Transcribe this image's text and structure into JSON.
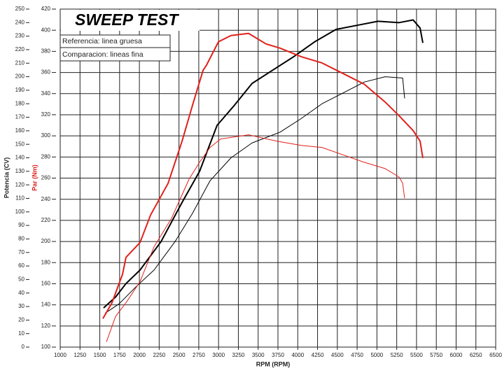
{
  "chart_data": {
    "type": "line",
    "title": "SWEEP TEST",
    "annotations": [
      "Referencia: linea gruesa",
      "Comparacion: lineas fina"
    ],
    "x_label": "RPM (RPM)",
    "y_label": "Potencia (CV)",
    "y2_label": "Par (Nm)",
    "xlim": [
      1000,
      6500
    ],
    "xticks": [
      1000,
      1250,
      1500,
      1750,
      2000,
      2250,
      2500,
      2750,
      3000,
      3250,
      3500,
      3750,
      4000,
      4250,
      4500,
      4750,
      5000,
      5250,
      5500,
      5750,
      6000,
      6250,
      6500
    ],
    "ylim": [
      0,
      250
    ],
    "yticks": [
      0,
      10,
      20,
      30,
      40,
      50,
      60,
      70,
      80,
      90,
      100,
      110,
      120,
      130,
      140,
      150,
      160,
      170,
      180,
      190,
      200,
      210,
      220,
      230,
      240,
      250
    ],
    "y2lim": [
      100,
      420
    ],
    "y2ticks": [
      100,
      120,
      140,
      160,
      180,
      200,
      220,
      240,
      260,
      280,
      300,
      320,
      340,
      360,
      380,
      400,
      420
    ],
    "grid": true,
    "series": [
      {
        "color": "#000000",
        "width": 2,
        "x": [
          1548,
          1699,
          1831,
          2008,
          2273,
          2539,
          2760,
          2981,
          3202,
          3423,
          3688,
          3954,
          4219,
          4484,
          4749,
          5014,
          5280,
          5457,
          5545,
          5580
        ],
        "values": [
          29,
          37,
          47,
          57,
          78,
          107,
          130,
          164,
          179,
          195,
          205,
          215,
          226,
          235,
          238,
          241,
          240,
          242,
          236,
          225
        ]
      },
      {
        "color": "#000000",
        "width": 1,
        "x": [
          1566,
          1743,
          1964,
          2185,
          2450,
          2671,
          2892,
          3157,
          3423,
          3777,
          4042,
          4307,
          4573,
          4838,
          5104,
          5325,
          5350
        ],
        "values": [
          25,
          32,
          45,
          57,
          78,
          99,
          123,
          140,
          151,
          159,
          169,
          180,
          188,
          196,
          200,
          199,
          184
        ]
      },
      {
        "color": "#e0201b",
        "width": 2,
        "axis": "y2",
        "x": [
          1539,
          1654,
          1787,
          1831,
          2008,
          2141,
          2362,
          2539,
          2671,
          2804,
          2848,
          2998,
          3157,
          3379,
          3600,
          3777,
          4042,
          4307,
          4573,
          4838,
          5104,
          5280,
          5457,
          5545,
          5580
        ],
        "values": [
          127,
          142,
          169,
          185,
          199,
          225,
          255,
          295,
          329,
          362,
          367,
          389,
          395,
          397,
          387,
          383,
          375,
          369,
          359,
          349,
          332,
          319,
          305,
          295,
          279
        ]
      },
      {
        "color": "#e0201b",
        "width": 1,
        "axis": "y2",
        "x": [
          1584,
          1699,
          1831,
          2008,
          2185,
          2406,
          2627,
          2760,
          2892,
          3025,
          3379,
          3733,
          4042,
          4307,
          4573,
          4838,
          5104,
          5280,
          5325,
          5350
        ],
        "values": [
          105,
          129,
          142,
          162,
          195,
          222,
          259,
          275,
          289,
          297,
          301,
          295,
          291,
          289,
          282,
          275,
          269,
          261,
          255,
          241
        ]
      }
    ]
  }
}
